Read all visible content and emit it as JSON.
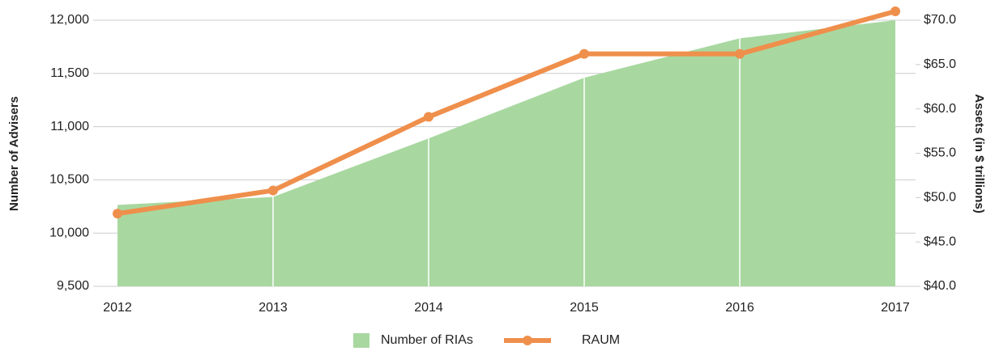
{
  "chart_data": {
    "type": "area-line",
    "y_label": "Number of Advisers",
    "y2_label": "Assets (in $ trillions)",
    "categories": [
      "2012",
      "2013",
      "2014",
      "2015",
      "2016",
      "2017"
    ],
    "series": [
      {
        "name": "Number of RIAs",
        "type": "area",
        "color": "#a8d8a0",
        "values": [
          10265,
          10340,
          10890,
          11460,
          11830,
          12000
        ]
      },
      {
        "name": "RAUM",
        "type": "line",
        "axis": "y2",
        "color": "#ef8f4c",
        "values": [
          48.2,
          50.8,
          59.1,
          66.2,
          66.2,
          71.0
        ]
      }
    ],
    "ylim": [
      9500,
      12000
    ],
    "yticks": [
      {
        "value": 9500,
        "label": "9,500"
      },
      {
        "value": 10000,
        "label": "10,000"
      },
      {
        "value": 10500,
        "label": "10,500"
      },
      {
        "value": 11000,
        "label": "11,000"
      },
      {
        "value": 11500,
        "label": "11,500"
      },
      {
        "value": 12000,
        "label": "12,000"
      }
    ],
    "y2lim": [
      40,
      70
    ],
    "y2ticks": [
      {
        "value": 40,
        "label": "$40.0"
      },
      {
        "value": 45,
        "label": "$45.0"
      },
      {
        "value": 50,
        "label": "$50.0"
      },
      {
        "value": 55,
        "label": "$55.0"
      },
      {
        "value": 60,
        "label": "$60.0"
      },
      {
        "value": 65,
        "label": "$65.0"
      },
      {
        "value": 70,
        "label": "$70.0"
      }
    ],
    "grid": true,
    "legend": "bottom"
  }
}
